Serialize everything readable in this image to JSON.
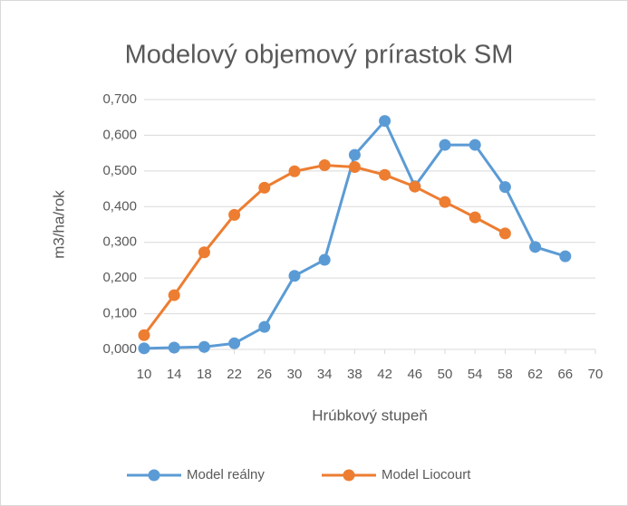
{
  "chart_data": {
    "type": "line",
    "title": "Modelový objemový prírastok SM",
    "x_label": "Hrúbkový stupeň",
    "y_label": "m3/ha/rok",
    "x": [
      10,
      14,
      18,
      22,
      26,
      30,
      34,
      38,
      42,
      46,
      50,
      54,
      58,
      62,
      66
    ],
    "series": [
      {
        "name": "Model reálny",
        "color": "#5b9bd5",
        "values": [
          0.003,
          0.005,
          0.007,
          0.017,
          0.063,
          0.206,
          0.251,
          0.545,
          0.64,
          0.457,
          0.573,
          0.573,
          0.455,
          0.287,
          0.261
        ]
      },
      {
        "name": "Model Liocourt",
        "color": "#ed7d31",
        "values": [
          0.04,
          0.152,
          0.272,
          0.377,
          0.453,
          0.499,
          0.516,
          0.511,
          0.489,
          0.456,
          0.413,
          0.37,
          0.325,
          null,
          null
        ]
      }
    ],
    "xlim": [
      10,
      70
    ],
    "xticks": [
      10,
      14,
      18,
      22,
      26,
      30,
      34,
      38,
      42,
      46,
      50,
      54,
      58,
      62,
      66,
      70
    ],
    "ylim": [
      0,
      0.7
    ],
    "yticks": [
      {
        "value": 0,
        "label": "0,000"
      },
      {
        "value": 0.1,
        "label": "0,100"
      },
      {
        "value": 0.2,
        "label": "0,200"
      },
      {
        "value": 0.3,
        "label": "0,300"
      },
      {
        "value": 0.4,
        "label": "0,400"
      },
      {
        "value": 0.5,
        "label": "0,500"
      },
      {
        "value": 0.6,
        "label": "0,600"
      },
      {
        "value": 0.7,
        "label": "0,700"
      }
    ],
    "grid": true,
    "legend": "bottom"
  }
}
